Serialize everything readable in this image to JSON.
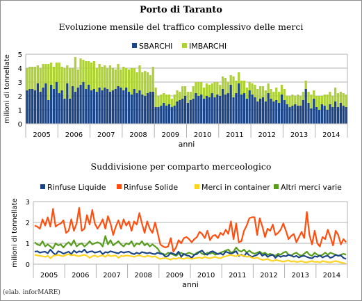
{
  "main_title": "Porto di Taranto",
  "credit": "(elab. inforMARE)",
  "chart_data": [
    {
      "type": "bar",
      "stacked": true,
      "title": "Evoluzione mensile del traffico complessivo delle merci",
      "xlabel": "anni",
      "ylabel": "milioni di tonnellate",
      "ylim": [
        0,
        5
      ],
      "yticks": [
        0,
        1,
        2,
        3,
        4,
        5
      ],
      "year_labels": [
        "2005",
        "2006",
        "2007",
        "2008",
        "2009",
        "2010",
        "2011",
        "2012",
        "2013",
        "2014"
      ],
      "legend_position": "top-center",
      "grid": true,
      "colors": {
        "SBARCHI": "#1c4587",
        "IMBARCHI": "#aed136"
      },
      "series": [
        {
          "name": "SBARCHI",
          "values": [
            2.4,
            2.5,
            2.5,
            2.4,
            2.9,
            2.3,
            2.6,
            2.9,
            1.7,
            2.8,
            2.5,
            3.0,
            2.2,
            2.4,
            1.8,
            2.9,
            1.8,
            2.7,
            2.3,
            2.6,
            2.8,
            3.0,
            2.5,
            2.8,
            2.4,
            2.5,
            2.3,
            2.6,
            2.4,
            2.6,
            2.5,
            2.3,
            2.4,
            2.5,
            2.7,
            2.6,
            2.4,
            2.6,
            2.3,
            2.1,
            2.5,
            2.2,
            2.4,
            2.1,
            2.0,
            2.2,
            2.3,
            2.3,
            1.2,
            1.2,
            1.3,
            1.5,
            1.3,
            1.4,
            1.2,
            1.3,
            1.6,
            1.7,
            1.8,
            2.0,
            1.5,
            1.7,
            1.8,
            2.2,
            2.0,
            2.1,
            1.8,
            2.0,
            1.9,
            2.2,
            1.9,
            2.1,
            2.0,
            2.5,
            2.1,
            2.2,
            2.8,
            1.9,
            2.2,
            2.9,
            2.1,
            2.2,
            1.8,
            2.4,
            2.1,
            1.9,
            1.6,
            1.8,
            1.9,
            1.6,
            2.2,
            1.8,
            1.6,
            1.7,
            1.5,
            2.1,
            1.7,
            1.4,
            1.2,
            1.3,
            1.4,
            1.3,
            1.3,
            1.7,
            2.5,
            1.5,
            1.1,
            1.8,
            1.2,
            1.0,
            1.4,
            1.3,
            1.0,
            1.4,
            1.2,
            1.6,
            1.2,
            1.5,
            1.3,
            1.2
          ]
        },
        {
          "name": "IMBARCHI",
          "values": [
            1.6,
            1.6,
            1.6,
            1.7,
            1.3,
            1.7,
            1.7,
            1.4,
            2.6,
            1.6,
            1.6,
            1.4,
            2.2,
            1.7,
            2.2,
            1.3,
            2.2,
            1.3,
            2.5,
            1.3,
            1.9,
            1.6,
            2.0,
            1.7,
            2.0,
            2.0,
            1.7,
            1.7,
            1.7,
            1.6,
            1.5,
            1.9,
            1.6,
            1.4,
            1.6,
            1.3,
            1.7,
            1.4,
            1.6,
            1.9,
            1.5,
            1.5,
            1.8,
            1.6,
            1.8,
            1.5,
            1.2,
            1.8,
            1.4,
            0.8,
            0.8,
            0.7,
            0.8,
            0.7,
            0.6,
            0.8,
            0.8,
            0.6,
            0.9,
            0.7,
            0.8,
            0.6,
            0.9,
            0.8,
            1.0,
            0.9,
            0.8,
            0.9,
            0.9,
            0.7,
            1.1,
            0.9,
            0.8,
            0.9,
            1.2,
            0.8,
            0.7,
            1.5,
            0.9,
            0.8,
            1.0,
            0.9,
            0.8,
            0.6,
            0.8,
            0.9,
            0.9,
            0.9,
            0.8,
            0.8,
            0.7,
            0.7,
            0.7,
            0.9,
            0.8,
            0.7,
            0.8,
            0.6,
            0.8,
            0.8,
            0.6,
            0.8,
            0.7,
            0.6,
            0.6,
            0.8,
            1.0,
            0.6,
            0.8,
            1.0,
            0.6,
            0.8,
            1.1,
            0.9,
            0.8,
            1.0,
            1.0,
            0.8,
            0.9,
            0.9
          ]
        }
      ]
    },
    {
      "type": "line",
      "title": "Suddivisione per comparto merceologico",
      "xlabel": "anni",
      "ylabel": "milioni di tonnellate",
      "ylim": [
        0,
        3
      ],
      "yticks": [
        0,
        1,
        2,
        3
      ],
      "year_labels": [
        "2005",
        "2006",
        "2007",
        "2008",
        "2009",
        "2010",
        "2011",
        "2012",
        "2013",
        "2014"
      ],
      "legend_position": "top",
      "grid": true,
      "colors": {
        "Rinfuse Liquide": "#1c4587",
        "Rinfuse Solide": "#ff4f0f",
        "Merci in container": "#ffd320",
        "Altri merci varie": "#579d1c"
      },
      "series": [
        {
          "name": "Rinfuse Liquide",
          "values": [
            0.6,
            0.62,
            0.55,
            0.58,
            0.6,
            0.52,
            0.7,
            0.55,
            0.45,
            0.62,
            0.58,
            0.5,
            0.55,
            0.6,
            0.48,
            0.65,
            0.55,
            0.62,
            0.58,
            0.7,
            0.55,
            0.6,
            0.62,
            0.55,
            0.58,
            0.62,
            0.48,
            0.58,
            0.55,
            0.62,
            0.58,
            0.55,
            0.52,
            0.6,
            0.55,
            0.58,
            0.6,
            0.52,
            0.48,
            0.55,
            0.5,
            0.58,
            0.55,
            0.52,
            0.55,
            0.5,
            0.48,
            0.55,
            0.5,
            0.48,
            0.35,
            0.4,
            0.55,
            0.5,
            0.45,
            0.6,
            0.35,
            0.5,
            0.42,
            0.4,
            0.3,
            0.45,
            0.48,
            0.6,
            0.65,
            0.5,
            0.45,
            0.58,
            0.62,
            0.55,
            0.48,
            0.52,
            0.45,
            0.6,
            0.55,
            0.5,
            0.55,
            0.62,
            0.4,
            0.45,
            0.38,
            0.55,
            0.42,
            0.35,
            0.4,
            0.45,
            0.55,
            0.4,
            0.48,
            0.35,
            0.42,
            0.45,
            0.3,
            0.42,
            0.35,
            0.4,
            0.38,
            0.45,
            0.42,
            0.35,
            0.4,
            0.32,
            0.38,
            0.4,
            0.35,
            0.3,
            0.28,
            0.38,
            0.35,
            0.42,
            0.32,
            0.38,
            0.4,
            0.3,
            0.35,
            0.45,
            0.4,
            0.42,
            0.3,
            0.25
          ]
        },
        {
          "name": "Rinfuse Solide",
          "values": [
            1.85,
            1.8,
            1.7,
            2.15,
            1.85,
            2.25,
            1.8,
            2.65,
            1.8,
            1.9,
            1.95,
            2.1,
            1.5,
            1.6,
            2.15,
            1.6,
            1.95,
            2.7,
            1.6,
            1.7,
            2.35,
            1.9,
            2.6,
            1.95,
            1.7,
            1.9,
            2.15,
            1.7,
            2.3,
            1.95,
            1.4,
            1.8,
            2.1,
            1.7,
            2.15,
            1.85,
            2.05,
            1.6,
            2.05,
            1.9,
            2.45,
            1.95,
            1.5,
            2.05,
            1.7,
            1.5,
            2.0,
            1.5,
            0.95,
            0.85,
            0.8,
            0.85,
            1.25,
            0.6,
            0.8,
            1.15,
            1.0,
            1.25,
            1.3,
            1.2,
            1.05,
            1.2,
            1.3,
            1.55,
            1.45,
            1.25,
            1.6,
            1.15,
            1.35,
            1.4,
            1.25,
            1.5,
            1.4,
            1.65,
            1.45,
            2.05,
            1.2,
            1.95,
            1.05,
            1.1,
            1.6,
            1.85,
            2.2,
            2.25,
            2.25,
            1.4,
            2.2,
            1.8,
            1.3,
            1.7,
            1.6,
            1.9,
            1.4,
            1.5,
            1.65,
            1.95,
            1.6,
            1.2,
            1.35,
            1.45,
            1.05,
            1.3,
            1.55,
            1.25,
            2.5,
            1.4,
            0.95,
            1.6,
            1.0,
            0.85,
            1.3,
            1.2,
            1.65,
            1.3,
            0.9,
            1.6,
            1.4,
            0.95,
            1.2,
            1.05
          ]
        },
        {
          "name": "Merci in container",
          "values": [
            0.45,
            0.42,
            0.4,
            0.38,
            0.35,
            0.4,
            0.28,
            0.4,
            0.42,
            0.45,
            0.4,
            0.38,
            0.45,
            0.48,
            0.42,
            0.45,
            0.4,
            0.38,
            0.42,
            0.45,
            0.4,
            0.3,
            0.38,
            0.42,
            0.35,
            0.4,
            0.42,
            0.35,
            0.45,
            0.38,
            0.4,
            0.42,
            0.3,
            0.4,
            0.38,
            0.42,
            0.4,
            0.38,
            0.35,
            0.4,
            0.42,
            0.38,
            0.35,
            0.4,
            0.38,
            0.35,
            0.38,
            0.3,
            0.25,
            0.28,
            0.3,
            0.25,
            0.22,
            0.28,
            0.25,
            0.3,
            0.28,
            0.25,
            0.3,
            0.28,
            0.25,
            0.28,
            0.3,
            0.32,
            0.28,
            0.35,
            0.3,
            0.28,
            0.32,
            0.35,
            0.3,
            0.28,
            0.35,
            0.38,
            0.42,
            0.45,
            0.4,
            0.38,
            0.45,
            0.42,
            0.4,
            0.35,
            0.38,
            0.3,
            0.28,
            0.32,
            0.25,
            0.2,
            0.22,
            0.25,
            0.18,
            0.15,
            0.2,
            0.18,
            0.15,
            0.12,
            0.15,
            0.18,
            0.12,
            0.15,
            0.1,
            0.12,
            0.15,
            0.1,
            0.08,
            0.12,
            0.15,
            0.1,
            0.12,
            0.08,
            0.15,
            0.12,
            0.1,
            0.08,
            0.12,
            0.15,
            0.12,
            0.08,
            0.05,
            0.02
          ]
        },
        {
          "name": "Altri merci varie",
          "values": [
            1.05,
            0.95,
            0.9,
            1.1,
            0.85,
            0.95,
            0.85,
            0.75,
            1.0,
            0.9,
            0.95,
            0.8,
            0.95,
            1.05,
            0.9,
            1.15,
            0.85,
            0.95,
            1.0,
            0.85,
            0.95,
            1.1,
            0.95,
            1.0,
            1.05,
            1.0,
            0.85,
            1.35,
            0.95,
            1.15,
            0.9,
            1.0,
            1.1,
            0.95,
            0.85,
            1.0,
            0.95,
            1.1,
            0.85,
            1.0,
            0.95,
            1.1,
            0.9,
            1.0,
            0.85,
            0.95,
            0.85,
            0.75,
            0.55,
            0.5,
            0.45,
            0.55,
            0.5,
            0.45,
            0.4,
            0.5,
            0.55,
            0.45,
            0.5,
            0.55,
            0.5,
            0.45,
            0.55,
            0.6,
            0.5,
            0.45,
            0.55,
            0.5,
            0.55,
            0.45,
            0.5,
            0.55,
            0.6,
            0.65,
            0.7,
            0.55,
            0.6,
            0.8,
            0.65,
            0.6,
            0.7,
            0.55,
            0.65,
            0.55,
            0.5,
            0.55,
            0.6,
            0.5,
            0.55,
            0.45,
            0.5,
            0.45,
            0.4,
            0.5,
            0.45,
            0.55,
            0.6,
            0.45,
            0.4,
            0.5,
            0.55,
            0.45,
            0.4,
            0.5,
            0.6,
            0.45,
            0.4,
            0.55,
            0.45,
            0.4,
            0.45,
            0.55,
            0.45,
            0.55,
            0.5,
            0.45,
            0.4,
            0.45,
            0.5,
            0.45
          ]
        }
      ]
    }
  ]
}
